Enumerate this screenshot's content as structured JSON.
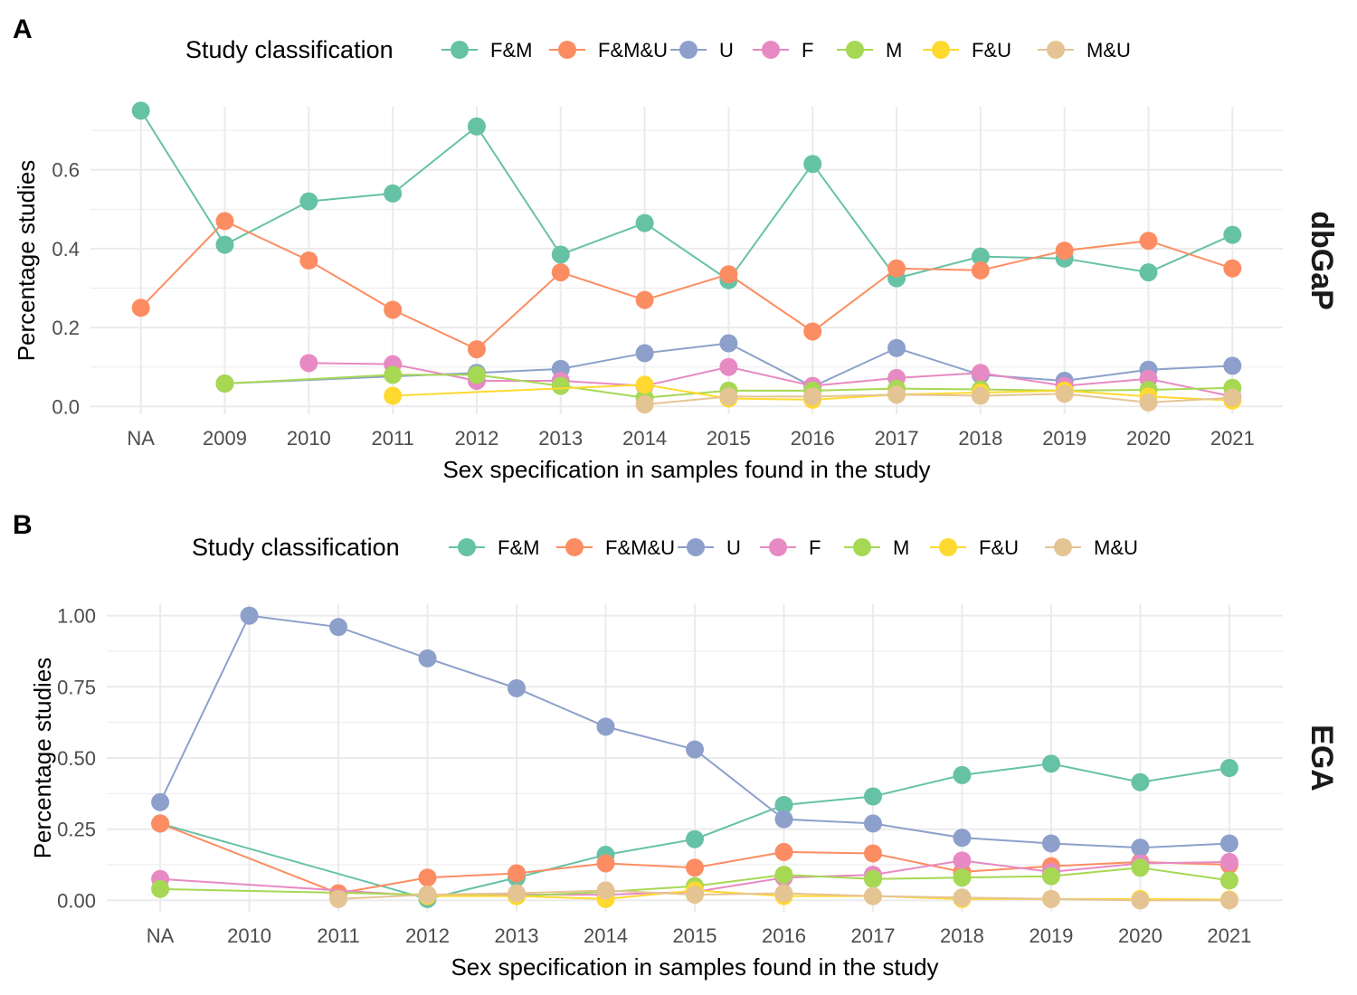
{
  "chart_data": [
    {
      "type": "line",
      "panel_label": "A",
      "strip_label": "dbGaP",
      "legend_title": "Study classification",
      "legend_position": "top",
      "xlabel": "Sex specification in samples found in the study",
      "ylabel": "Percentage studies",
      "categories": [
        "NA",
        "2009",
        "2010",
        "2011",
        "2012",
        "2013",
        "2014",
        "2015",
        "2016",
        "2017",
        "2018",
        "2019",
        "2020",
        "2021"
      ],
      "ylim": [
        -0.02,
        0.76
      ],
      "yticks": [
        0.0,
        0.2,
        0.4,
        0.6
      ],
      "ytick_labels": [
        "0.0",
        "0.2",
        "0.4",
        "0.6"
      ],
      "grid": true,
      "series": [
        {
          "name": "F&M",
          "color": "#66c2a5",
          "values": [
            0.75,
            0.41,
            0.52,
            0.54,
            0.71,
            0.385,
            0.465,
            0.32,
            0.615,
            0.325,
            0.38,
            0.375,
            0.34,
            0.435
          ]
        },
        {
          "name": "F&M&U",
          "color": "#fc8d62",
          "values": [
            0.25,
            0.47,
            0.37,
            0.245,
            0.145,
            0.34,
            0.27,
            0.335,
            0.19,
            0.35,
            0.345,
            0.395,
            0.42,
            0.35
          ]
        },
        {
          "name": "U",
          "color": "#8da0cb",
          "values": [
            null,
            0.058,
            null,
            null,
            0.085,
            0.095,
            0.135,
            0.16,
            0.05,
            0.148,
            0.08,
            0.065,
            0.093,
            0.103
          ]
        },
        {
          "name": "F",
          "color": "#e78ac3",
          "values": [
            null,
            null,
            0.11,
            0.107,
            0.065,
            0.065,
            0.052,
            0.1,
            0.052,
            0.072,
            0.085,
            0.052,
            0.07,
            0.025
          ]
        },
        {
          "name": "M",
          "color": "#a6d854",
          "values": [
            null,
            0.058,
            null,
            0.08,
            0.08,
            0.052,
            0.022,
            0.04,
            0.04,
            0.045,
            0.043,
            0.04,
            0.042,
            0.047
          ]
        },
        {
          "name": "F&U",
          "color": "#ffd92f",
          "values": [
            null,
            null,
            null,
            0.027,
            null,
            null,
            0.055,
            0.02,
            0.017,
            0.03,
            0.035,
            0.04,
            0.025,
            0.015
          ]
        },
        {
          "name": "M&U",
          "color": "#e5c494",
          "values": [
            null,
            null,
            null,
            null,
            null,
            null,
            0.005,
            0.025,
            0.025,
            0.03,
            0.027,
            0.032,
            0.01,
            0.022
          ]
        }
      ]
    },
    {
      "type": "line",
      "panel_label": "B",
      "strip_label": "EGA",
      "legend_title": "Study classification",
      "legend_position": "top",
      "xlabel": "Sex specification in samples found in the study",
      "ylabel": "Percentage studies",
      "categories": [
        "NA",
        "2010",
        "2011",
        "2012",
        "2013",
        "2014",
        "2015",
        "2016",
        "2017",
        "2018",
        "2019",
        "2020",
        "2021"
      ],
      "ylim": [
        -0.04,
        1.04
      ],
      "yticks": [
        0.0,
        0.25,
        0.5,
        0.75,
        1.0
      ],
      "ytick_labels": [
        "0.00",
        "0.25",
        "0.50",
        "0.75",
        "1.00"
      ],
      "grid": true,
      "series": [
        {
          "name": "F&M",
          "color": "#66c2a5",
          "values": [
            0.27,
            null,
            null,
            0.005,
            0.08,
            0.16,
            0.215,
            0.335,
            0.365,
            0.44,
            0.48,
            0.415,
            0.465
          ]
        },
        {
          "name": "F&M&U",
          "color": "#fc8d62",
          "values": [
            0.27,
            null,
            0.025,
            0.08,
            0.095,
            0.13,
            0.115,
            0.17,
            0.165,
            0.1,
            0.12,
            0.135,
            0.125
          ]
        },
        {
          "name": "U",
          "color": "#8da0cb",
          "values": [
            0.345,
            1.0,
            0.96,
            0.85,
            0.745,
            0.61,
            0.53,
            0.285,
            0.27,
            0.22,
            0.2,
            0.185,
            0.2
          ]
        },
        {
          "name": "F",
          "color": "#e78ac3",
          "values": [
            0.075,
            null,
            null,
            0.015,
            0.02,
            0.02,
            0.03,
            0.08,
            0.09,
            0.14,
            0.1,
            0.13,
            0.135
          ]
        },
        {
          "name": "M",
          "color": "#a6d854",
          "values": [
            0.04,
            null,
            null,
            0.02,
            0.015,
            0.03,
            0.05,
            0.09,
            0.075,
            0.08,
            0.085,
            0.115,
            0.07
          ]
        },
        {
          "name": "F&U",
          "color": "#ffd92f",
          "values": [
            null,
            null,
            null,
            0.015,
            0.015,
            0.005,
            0.035,
            0.015,
            0.015,
            0.005,
            0.005,
            0.005,
            0.003
          ]
        },
        {
          "name": "M&U",
          "color": "#e5c494",
          "values": [
            null,
            null,
            0.005,
            0.02,
            0.025,
            0.035,
            0.02,
            0.025,
            0.015,
            0.01,
            0.005,
            0.0,
            0.0
          ]
        }
      ]
    }
  ]
}
